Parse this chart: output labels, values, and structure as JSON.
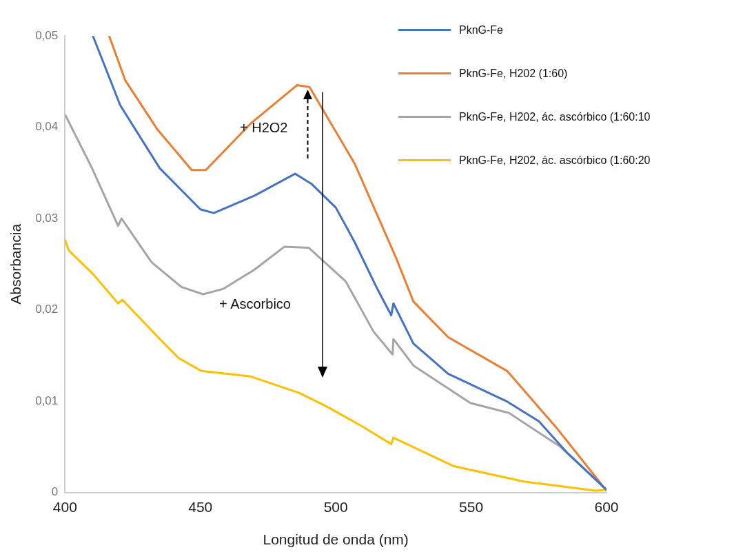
{
  "chart_data": {
    "type": "line",
    "xlabel": "Longitud de onda (nm)",
    "ylabel": "Absorbancia",
    "xlim": [
      400,
      600
    ],
    "xticks": [
      400,
      450,
      500,
      550,
      600
    ],
    "ylim": [
      0,
      0.05
    ],
    "yticks": [
      0,
      {
        "value": 0.01,
        "label": "0,01"
      },
      {
        "value": 0.02,
        "label": "0,02"
      },
      {
        "value": 0.03,
        "label": "0,03"
      },
      {
        "value": 0.04,
        "label": "0,04"
      },
      {
        "value": 0.05,
        "label": "0,05"
      }
    ],
    "grid": false,
    "legend": "top right",
    "marker": "none",
    "line_style": "solid",
    "annotations": [
      "+ H2O2",
      "+ Ascorbico"
    ],
    "series": [
      {
        "name": "PknG-Fe",
        "color": "#4472c4",
        "x": [
          410.3,
          420.4,
          435,
          450,
          455,
          470,
          485,
          491,
          500,
          507,
          515,
          520.5,
          521.3,
          528.7,
          541.5,
          563,
          575,
          585.3,
          600
        ],
        "values": [
          0.05,
          0.0424,
          0.0355,
          0.031,
          0.0306,
          0.0325,
          0.0349,
          0.0338,
          0.0312,
          0.0274,
          0.0225,
          0.0194,
          0.0207,
          0.0163,
          0.013,
          0.01,
          0.0078,
          0.0044,
          0.0003
        ]
      },
      {
        "name": "PknG-Fe, H202  (1:60)",
        "color": "#ed7d31",
        "x": [
          416.3,
          422.3,
          434,
          446.8,
          452,
          468.6,
          485.7,
          490.3,
          507,
          522.4,
          528.7,
          541.5,
          563.3,
          581.2,
          600
        ],
        "values": [
          0.05,
          0.0451,
          0.0398,
          0.0353,
          0.0353,
          0.0404,
          0.0446,
          0.0444,
          0.036,
          0.0256,
          0.0209,
          0.017,
          0.0133,
          0.0072,
          0.0002
        ]
      },
      {
        "name": "PknG-Fe, H202, ác. ascórbico (1:60:10",
        "color": "#a5a5a5",
        "x": [
          400,
          410,
          419.6,
          420.9,
          432,
          443,
          451,
          458.5,
          470,
          481,
          490,
          503.7,
          514,
          521,
          521.3,
          528.7,
          549.7,
          564,
          583,
          600
        ],
        "values": [
          0.0414,
          0.0355,
          0.0292,
          0.03,
          0.0252,
          0.0225,
          0.0217,
          0.0223,
          0.0244,
          0.0269,
          0.0268,
          0.0231,
          0.0176,
          0.0151,
          0.0168,
          0.0139,
          0.0098,
          0.0087,
          0.005,
          0.0003
        ]
      },
      {
        "name": "PknG-Fe, H202, ác. ascórbico (1:60:20",
        "color": "#ffc000",
        "x": [
          400,
          401.4,
          410.4,
          419.6,
          421.2,
          436,
          442,
          450.4,
          468.6,
          486.5,
          497.4,
          510,
          520.5,
          521.3,
          543.4,
          569.5,
          596,
          600
        ],
        "values": [
          0.0277,
          0.0265,
          0.0239,
          0.0207,
          0.0211,
          0.0165,
          0.0147,
          0.0133,
          0.0127,
          0.0109,
          0.0093,
          0.0072,
          0.0053,
          0.006,
          0.0029,
          0.0012,
          0.0002,
          0.0003
        ]
      }
    ]
  }
}
